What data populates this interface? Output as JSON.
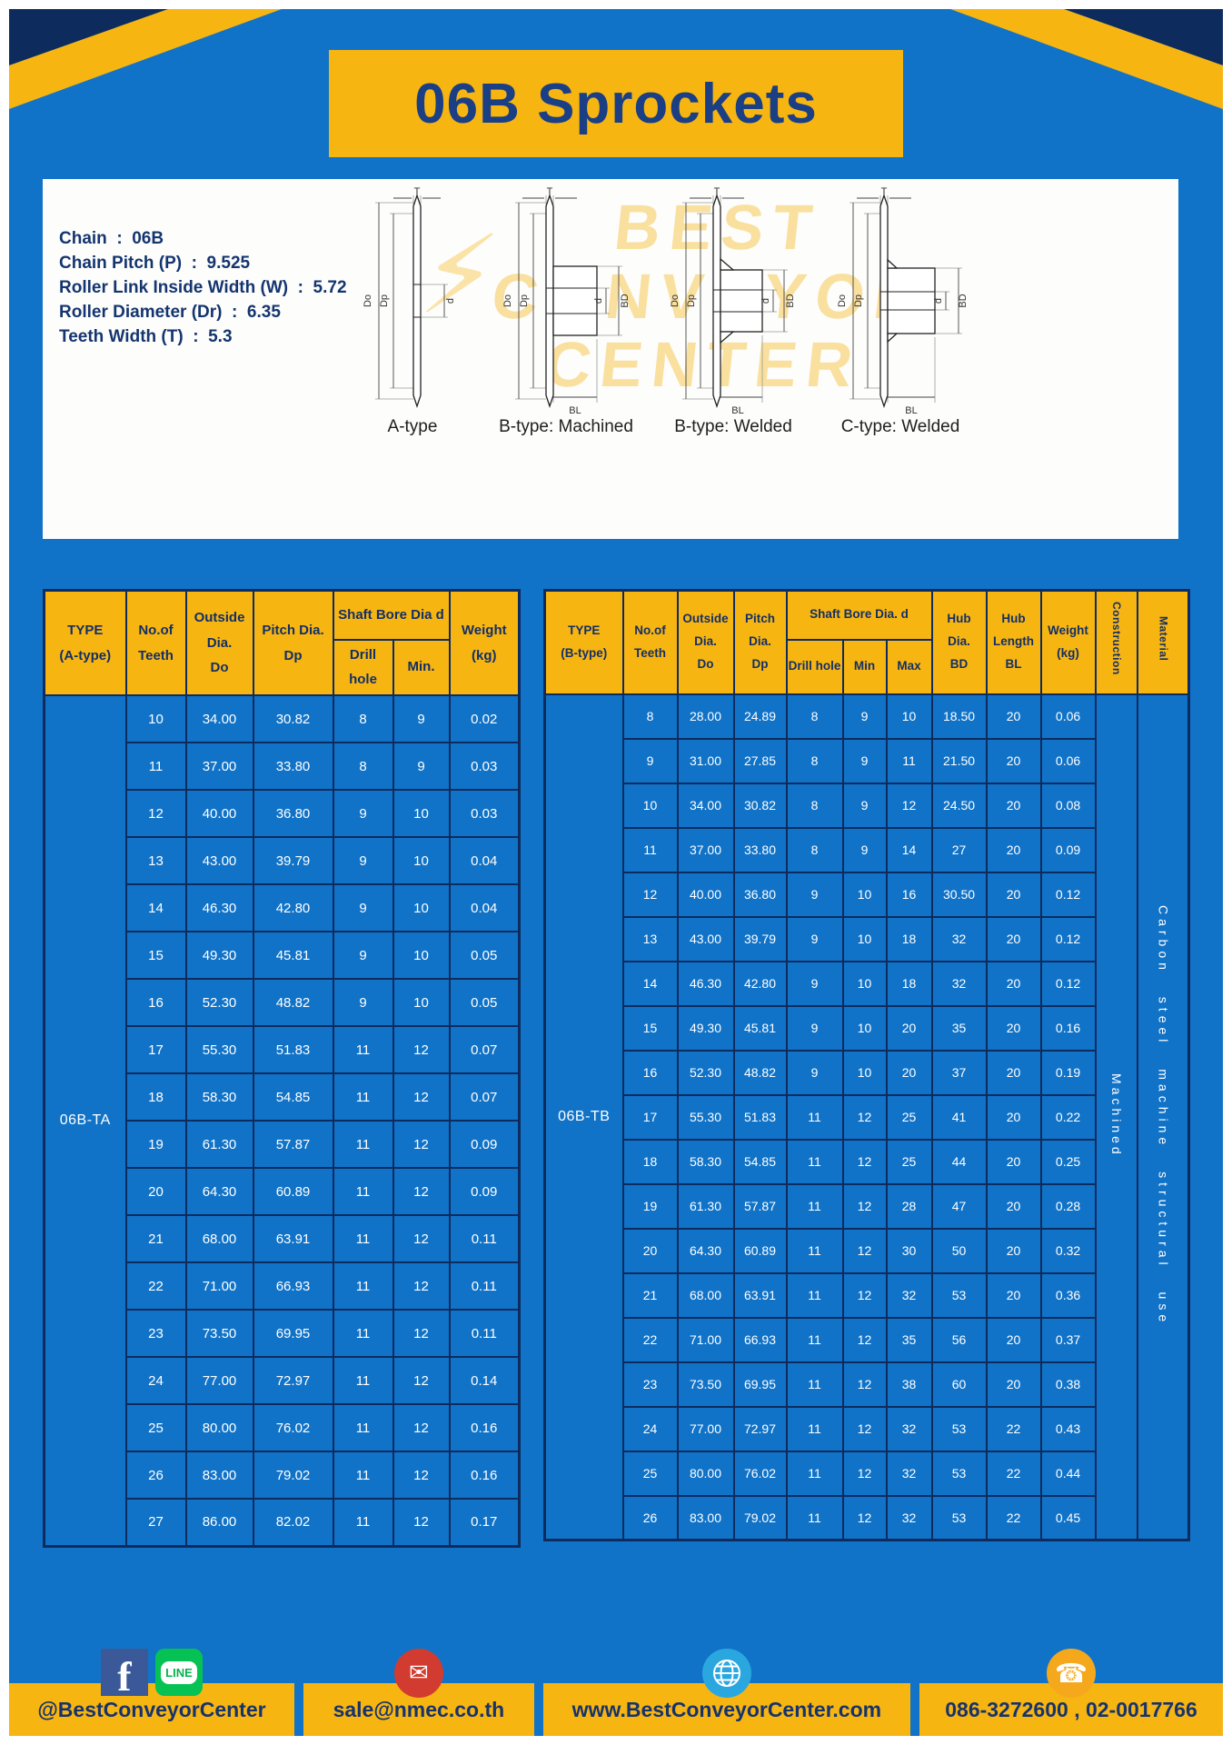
{
  "title": "06B Sprockets",
  "specs": {
    "lines": [
      "Chain  :  06B",
      "Chain Pitch (P)  :  9.525",
      "Roller Link Inside Width (W)  :  5.72",
      "Roller Diameter (Dr)  :  6.35",
      "Teeth Width (T)  :  5.3"
    ]
  },
  "watermark": {
    "logo_glyph": "⚡",
    "lines": [
      "BEST",
      "CONVEYOR",
      "CENTER"
    ]
  },
  "diagrams": {
    "captions": [
      "A-type",
      "B-type: Machined",
      "B-type: Welded",
      "C-type: Welded"
    ],
    "labels": {
      "t": "T",
      "do": "Do",
      "dp": "Dp",
      "d": "d",
      "bd": "BD",
      "bl": "BL"
    }
  },
  "table_a": {
    "headers": {
      "type": "TYPE\n(A-type)",
      "teeth": "No.of\nTeeth",
      "outside": "Outside\nDia.\nDo",
      "pitch": "Pitch Dia.\nDp",
      "bore_group": "Shaft Bore Dia d",
      "drill": "Drill hole",
      "min": "Min.",
      "weight": "Weight\n(kg)"
    },
    "type_label": "06B-TA",
    "rows": [
      [
        "10",
        "34.00",
        "30.82",
        "8",
        "9",
        "0.02"
      ],
      [
        "11",
        "37.00",
        "33.80",
        "8",
        "9",
        "0.03"
      ],
      [
        "12",
        "40.00",
        "36.80",
        "9",
        "10",
        "0.03"
      ],
      [
        "13",
        "43.00",
        "39.79",
        "9",
        "10",
        "0.04"
      ],
      [
        "14",
        "46.30",
        "42.80",
        "9",
        "10",
        "0.04"
      ],
      [
        "15",
        "49.30",
        "45.81",
        "9",
        "10",
        "0.05"
      ],
      [
        "16",
        "52.30",
        "48.82",
        "9",
        "10",
        "0.05"
      ],
      [
        "17",
        "55.30",
        "51.83",
        "11",
        "12",
        "0.07"
      ],
      [
        "18",
        "58.30",
        "54.85",
        "11",
        "12",
        "0.07"
      ],
      [
        "19",
        "61.30",
        "57.87",
        "11",
        "12",
        "0.09"
      ],
      [
        "20",
        "64.30",
        "60.89",
        "11",
        "12",
        "0.09"
      ],
      [
        "21",
        "68.00",
        "63.91",
        "11",
        "12",
        "0.11"
      ],
      [
        "22",
        "71.00",
        "66.93",
        "11",
        "12",
        "0.11"
      ],
      [
        "23",
        "73.50",
        "69.95",
        "11",
        "12",
        "0.11"
      ],
      [
        "24",
        "77.00",
        "72.97",
        "11",
        "12",
        "0.14"
      ],
      [
        "25",
        "80.00",
        "76.02",
        "11",
        "12",
        "0.16"
      ],
      [
        "26",
        "83.00",
        "79.02",
        "11",
        "12",
        "0.16"
      ],
      [
        "27",
        "86.00",
        "82.02",
        "11",
        "12",
        "0.17"
      ]
    ]
  },
  "table_b": {
    "headers": {
      "type": "TYPE\n(B-type)",
      "teeth": "No.of\nTeeth",
      "outside": "Outside\nDia.\nDo",
      "pitch": "Pitch\nDia.\nDp",
      "bore_group": "Shaft Bore Dia. d",
      "drill": "Drill hole",
      "min": "Min",
      "max": "Max",
      "hub_dia": "Hub\nDia.\nBD",
      "hub_len": "Hub\nLength\nBL",
      "weight": "Weight\n(kg)",
      "construction": "Construction",
      "material": "Material"
    },
    "type_label": "06B-TB",
    "construction_value": "Machined",
    "material_value": "Carbon steel machine structural use",
    "rows": [
      [
        "8",
        "28.00",
        "24.89",
        "8",
        "9",
        "10",
        "18.50",
        "20",
        "0.06"
      ],
      [
        "9",
        "31.00",
        "27.85",
        "8",
        "9",
        "11",
        "21.50",
        "20",
        "0.06"
      ],
      [
        "10",
        "34.00",
        "30.82",
        "8",
        "9",
        "12",
        "24.50",
        "20",
        "0.08"
      ],
      [
        "11",
        "37.00",
        "33.80",
        "8",
        "9",
        "14",
        "27",
        "20",
        "0.09"
      ],
      [
        "12",
        "40.00",
        "36.80",
        "9",
        "10",
        "16",
        "30.50",
        "20",
        "0.12"
      ],
      [
        "13",
        "43.00",
        "39.79",
        "9",
        "10",
        "18",
        "32",
        "20",
        "0.12"
      ],
      [
        "14",
        "46.30",
        "42.80",
        "9",
        "10",
        "18",
        "32",
        "20",
        "0.12"
      ],
      [
        "15",
        "49.30",
        "45.81",
        "9",
        "10",
        "20",
        "35",
        "20",
        "0.16"
      ],
      [
        "16",
        "52.30",
        "48.82",
        "9",
        "10",
        "20",
        "37",
        "20",
        "0.19"
      ],
      [
        "17",
        "55.30",
        "51.83",
        "11",
        "12",
        "25",
        "41",
        "20",
        "0.22"
      ],
      [
        "18",
        "58.30",
        "54.85",
        "11",
        "12",
        "25",
        "44",
        "20",
        "0.25"
      ],
      [
        "19",
        "61.30",
        "57.87",
        "11",
        "12",
        "28",
        "47",
        "20",
        "0.28"
      ],
      [
        "20",
        "64.30",
        "60.89",
        "11",
        "12",
        "30",
        "50",
        "20",
        "0.32"
      ],
      [
        "21",
        "68.00",
        "63.91",
        "11",
        "12",
        "32",
        "53",
        "20",
        "0.36"
      ],
      [
        "22",
        "71.00",
        "66.93",
        "11",
        "12",
        "35",
        "56",
        "20",
        "0.37"
      ],
      [
        "23",
        "73.50",
        "69.95",
        "11",
        "12",
        "38",
        "60",
        "20",
        "0.38"
      ],
      [
        "24",
        "77.00",
        "72.97",
        "11",
        "12",
        "32",
        "53",
        "22",
        "0.43"
      ],
      [
        "25",
        "80.00",
        "76.02",
        "11",
        "12",
        "32",
        "53",
        "22",
        "0.44"
      ],
      [
        "26",
        "83.00",
        "79.02",
        "11",
        "12",
        "32",
        "53",
        "22",
        "0.45"
      ]
    ]
  },
  "footer": {
    "social": "@BestConveyorCenter",
    "email": "sale@nmec.co.th",
    "website": "www.BestConveyorCenter.com",
    "phone": "086-3272600 , 02-0017766",
    "fb_letter": "f",
    "line_label": "LINE",
    "mail_glyph": "✉",
    "phone_glyph": "☎"
  },
  "colors": {
    "background_blue": "#1173C8",
    "accent_yellow": "#F7B512",
    "navy": "#0E2B5E",
    "white": "#FFFFFF"
  }
}
